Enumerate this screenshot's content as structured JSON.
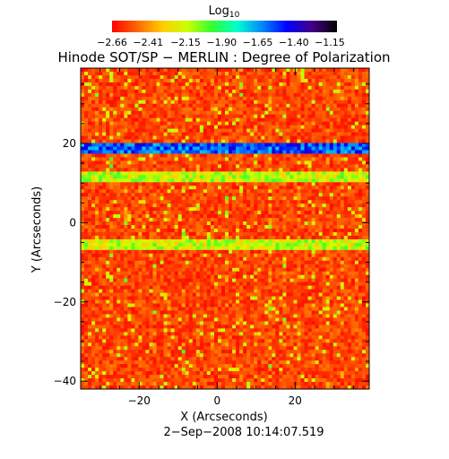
{
  "chart_data": {
    "type": "heatmap",
    "title": "Hinode SOT/SP − MERLIN : Degree of Polarization",
    "subtitle": "2−Sep−2008 10:14:07.519",
    "xlabel": "X (Arcseconds)",
    "ylabel": "Y (Arcseconds)",
    "xlim": [
      -35,
      39
    ],
    "ylim": [
      -42,
      39
    ],
    "x_ticks": [
      -20,
      0,
      20
    ],
    "y_ticks": [
      20,
      0,
      -20,
      -40
    ],
    "x_tick_labels": [
      "−20",
      "0",
      "20"
    ],
    "y_tick_labels": [
      "20",
      "0",
      "−20",
      "−40"
    ],
    "colorbar": {
      "title_base": "Log",
      "title_sub": "10",
      "range": [
        -2.66,
        -1.1
      ],
      "ticks": [
        -2.66,
        -2.41,
        -2.15,
        -1.9,
        -1.65,
        -1.4,
        -1.15
      ],
      "tick_labels": [
        "−2.66",
        "−2.41",
        "−2.15",
        "−1.90",
        "−1.65",
        "−1.40",
        "−1.15"
      ],
      "colors": [
        "#ff0000",
        "#ff6600",
        "#ffcc00",
        "#ccff00",
        "#33ff33",
        "#00ffcc",
        "#0088ff",
        "#0000ff",
        "#440088",
        "#000000"
      ]
    },
    "bands": [
      {
        "y_from": 17.5,
        "y_to": 20.0,
        "value": -1.55
      },
      {
        "y_from": 10.5,
        "y_to": 12.5,
        "value": -2.15
      },
      {
        "y_from": -6.5,
        "y_to": -4.0,
        "value": -2.15
      }
    ],
    "background_value": -2.55
  }
}
